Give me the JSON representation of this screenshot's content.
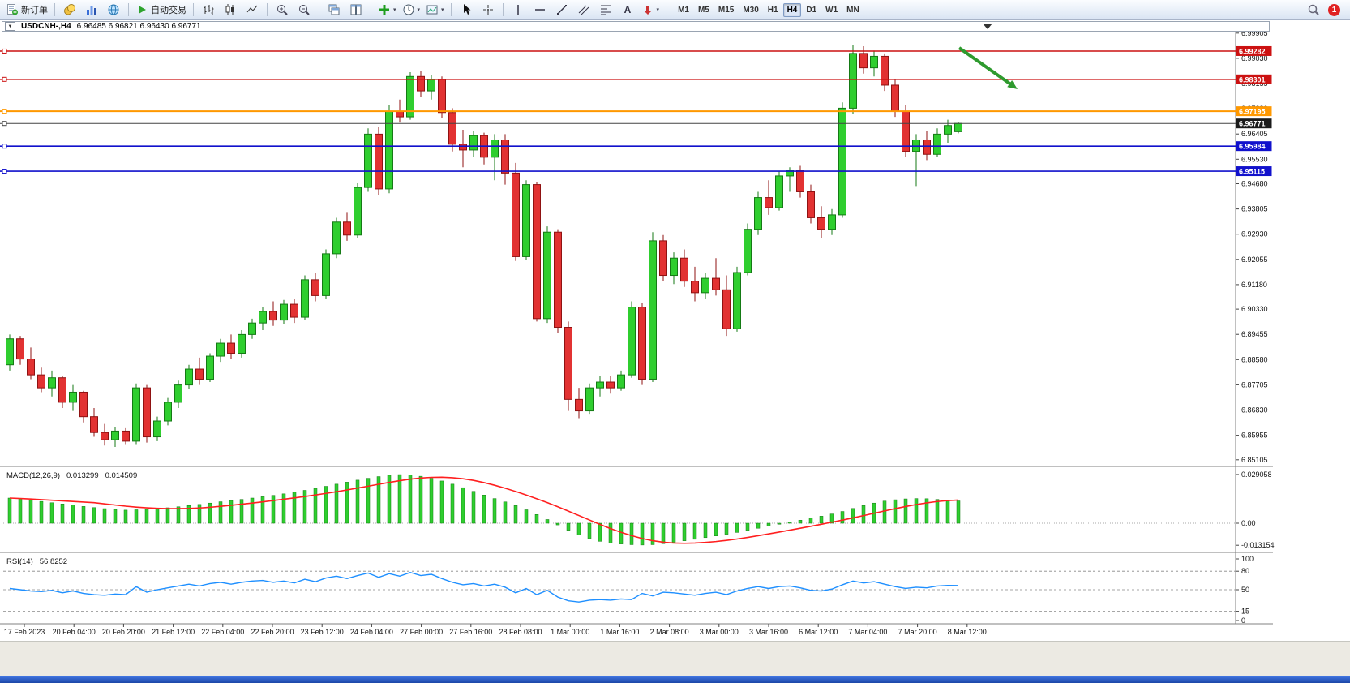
{
  "toolbar": {
    "new_order_label": "新订单",
    "auto_trading_label": "自动交易",
    "timeframes": [
      "M1",
      "M5",
      "M15",
      "M30",
      "H1",
      "H4",
      "D1",
      "W1",
      "MN"
    ],
    "active_timeframe": "H4",
    "notification_count": "1"
  },
  "chart_header": {
    "collapse_glyph": "▼",
    "symbol_title": "USDCNH-,H4",
    "quote_ohlc": "6.96485 6.96821 6.96430 6.96771"
  },
  "price_axis_ticks": [
    "6.99905",
    "6.99030",
    "6.98155",
    "6.97280",
    "6.96405",
    "6.95530",
    "6.94680",
    "6.93805",
    "6.92930",
    "6.92055",
    "6.91180",
    "6.90330",
    "6.89455",
    "6.88580",
    "6.87705",
    "6.86830",
    "6.85955",
    "6.85105"
  ],
  "hlines": [
    {
      "price": 6.99282,
      "label": "6.99282",
      "color": "#cc1111",
      "width": 1.5
    },
    {
      "price": 6.98301,
      "label": "6.98301",
      "color": "#cc1111",
      "width": 1.5
    },
    {
      "price": 6.97195,
      "label": "6.97195",
      "color": "#ff9800",
      "width": 2
    },
    {
      "price": 6.96771,
      "label": "6.96771",
      "color": "#444444",
      "width": 1,
      "current": true
    },
    {
      "price": 6.95984,
      "label": "6.95984",
      "color": "#1111cc",
      "width": 1.6
    },
    {
      "price": 6.95115,
      "label": "6.95115",
      "color": "#1111cc",
      "width": 1.6
    }
  ],
  "annotation_arrow": {
    "color": "#2e9a2e"
  },
  "chart_data": [
    {
      "type": "candlestick",
      "symbol": "USDCNH",
      "timeframe": "H4",
      "y_range": [
        6.85105,
        6.99905
      ],
      "up_color": "#2fce2f",
      "down_color": "#e23232",
      "time_labels": [
        "17 Feb 2023",
        "20 Feb 04:00",
        "20 Feb 20:00",
        "21 Feb 12:00",
        "22 Feb 04:00",
        "22 Feb 20:00",
        "23 Feb 12:00",
        "24 Feb 04:00",
        "27 Feb 00:00",
        "27 Feb 16:00",
        "28 Feb 08:00",
        "1 Mar 00:00",
        "1 Mar 16:00",
        "2 Mar 08:00",
        "3 Mar 00:00",
        "3 Mar 16:00",
        "6 Mar 12:00",
        "7 Mar 04:00",
        "7 Mar 20:00",
        "8 Mar 12:00"
      ],
      "candles": [
        [
          6.884,
          6.8945,
          6.882,
          6.893
        ],
        [
          6.893,
          6.894,
          6.884,
          6.886
        ],
        [
          6.886,
          6.89,
          6.879,
          6.8805
        ],
        [
          6.8805,
          6.883,
          6.8745,
          6.876
        ],
        [
          6.876,
          6.882,
          6.873,
          6.8795
        ],
        [
          6.8795,
          6.88,
          6.869,
          6.871
        ],
        [
          6.871,
          6.877,
          6.868,
          6.8745
        ],
        [
          6.8745,
          6.875,
          6.864,
          6.866
        ],
        [
          6.866,
          6.869,
          6.859,
          6.8605
        ],
        [
          6.8605,
          6.8635,
          6.856,
          6.858
        ],
        [
          6.858,
          6.8625,
          6.8555,
          6.861
        ],
        [
          6.861,
          6.862,
          6.8565,
          6.8575
        ],
        [
          6.8575,
          6.8775,
          6.8565,
          6.876
        ],
        [
          6.876,
          6.877,
          6.857,
          6.859
        ],
        [
          6.859,
          6.866,
          6.8575,
          6.8645
        ],
        [
          6.8645,
          6.8725,
          6.863,
          6.871
        ],
        [
          6.871,
          6.8785,
          6.869,
          6.877
        ],
        [
          6.877,
          6.884,
          6.8755,
          6.8825
        ],
        [
          6.8825,
          6.8865,
          6.877,
          6.879
        ],
        [
          6.879,
          6.888,
          6.878,
          6.887
        ],
        [
          6.887,
          6.893,
          6.885,
          6.8915
        ],
        [
          6.8915,
          6.8945,
          6.886,
          6.888
        ],
        [
          6.888,
          6.896,
          6.8865,
          6.8945
        ],
        [
          6.8945,
          6.9,
          6.893,
          6.8985
        ],
        [
          6.8985,
          6.904,
          6.896,
          6.9025
        ],
        [
          6.9025,
          6.906,
          6.8975,
          6.8995
        ],
        [
          6.8995,
          6.9065,
          6.898,
          6.905
        ],
        [
          6.905,
          6.907,
          6.8985,
          6.9005
        ],
        [
          6.9005,
          6.915,
          6.8995,
          6.9135
        ],
        [
          6.9135,
          6.916,
          6.906,
          6.908
        ],
        [
          6.908,
          6.924,
          6.907,
          6.9225
        ],
        [
          6.9225,
          6.935,
          6.921,
          6.9335
        ],
        [
          6.9335,
          6.937,
          6.927,
          6.929
        ],
        [
          6.929,
          6.947,
          6.928,
          6.9455
        ],
        [
          6.9455,
          6.966,
          6.944,
          6.964
        ],
        [
          6.964,
          6.9665,
          6.943,
          6.945
        ],
        [
          6.945,
          6.974,
          6.9435,
          6.972
        ],
        [
          6.972,
          6.976,
          6.968,
          6.97
        ],
        [
          6.97,
          6.9855,
          6.969,
          6.984
        ],
        [
          6.984,
          6.986,
          6.977,
          6.979
        ],
        [
          6.979,
          6.9845,
          6.976,
          6.983
        ],
        [
          6.983,
          6.984,
          6.9695,
          6.9715
        ],
        [
          6.9715,
          6.973,
          6.958,
          6.9605
        ],
        [
          6.9605,
          6.9655,
          6.9525,
          6.9585
        ],
        [
          6.9585,
          6.965,
          6.956,
          6.9635
        ],
        [
          6.9635,
          6.9645,
          6.9535,
          6.956
        ],
        [
          6.956,
          6.964,
          6.948,
          6.962
        ],
        [
          6.962,
          6.964,
          6.9465,
          6.9505
        ],
        [
          6.9505,
          6.954,
          6.92,
          6.9215
        ],
        [
          6.9215,
          6.948,
          6.9205,
          6.9465
        ],
        [
          6.9465,
          6.9475,
          6.899,
          6.9
        ],
        [
          6.9,
          6.932,
          6.8985,
          6.93
        ],
        [
          6.93,
          6.931,
          6.895,
          6.897
        ],
        [
          6.897,
          6.899,
          6.868,
          6.872
        ],
        [
          6.872,
          6.876,
          6.8655,
          6.868
        ],
        [
          6.868,
          6.8775,
          6.867,
          6.876
        ],
        [
          6.876,
          6.88,
          6.873,
          6.878
        ],
        [
          6.878,
          6.88,
          6.874,
          6.876
        ],
        [
          6.876,
          6.882,
          6.875,
          6.8805
        ],
        [
          6.8805,
          6.906,
          6.8795,
          6.904
        ],
        [
          6.904,
          6.9055,
          6.877,
          6.879
        ],
        [
          6.879,
          6.93,
          6.878,
          6.927
        ],
        [
          6.927,
          6.929,
          6.913,
          6.915
        ],
        [
          6.915,
          6.923,
          6.912,
          6.921
        ],
        [
          6.921,
          6.924,
          6.911,
          6.913
        ],
        [
          6.913,
          6.918,
          6.906,
          6.909
        ],
        [
          6.909,
          6.916,
          6.907,
          6.914
        ],
        [
          6.914,
          6.921,
          6.908,
          6.91
        ],
        [
          6.91,
          6.915,
          6.894,
          6.8965
        ],
        [
          6.8965,
          6.918,
          6.8955,
          6.916
        ],
        [
          6.916,
          6.933,
          6.915,
          6.931
        ],
        [
          6.931,
          6.944,
          6.929,
          6.942
        ],
        [
          6.942,
          6.948,
          6.936,
          6.9385
        ],
        [
          6.9385,
          6.951,
          6.9375,
          6.9495
        ],
        [
          6.9495,
          6.9525,
          6.944,
          6.9515
        ],
        [
          6.9515,
          6.953,
          6.942,
          6.944
        ],
        [
          6.944,
          6.9465,
          6.933,
          6.935
        ],
        [
          6.935,
          6.939,
          6.928,
          6.931
        ],
        [
          6.931,
          6.938,
          6.929,
          6.936
        ],
        [
          6.936,
          6.975,
          6.935,
          6.973
        ],
        [
          6.973,
          6.995,
          6.971,
          6.992
        ],
        [
          6.992,
          6.9945,
          6.985,
          6.987
        ],
        [
          6.987,
          6.993,
          6.984,
          6.991
        ],
        [
          6.991,
          6.992,
          6.979,
          6.981
        ],
        [
          6.981,
          6.983,
          6.97,
          6.972
        ],
        [
          6.972,
          6.974,
          6.956,
          6.958
        ],
        [
          6.958,
          6.964,
          6.946,
          6.962
        ],
        [
          6.962,
          6.965,
          6.955,
          6.957
        ],
        [
          6.957,
          6.966,
          6.956,
          6.964
        ],
        [
          6.964,
          6.969,
          6.961,
          6.967
        ],
        [
          6.96485,
          6.96821,
          6.9643,
          6.96771
        ]
      ]
    },
    {
      "type": "bar",
      "title": "MACD(12,26,9)",
      "main_value": "0.013299",
      "signal_value": "0.014509",
      "axis_labels": [
        "0.029058",
        "0.00",
        "-0.013154"
      ],
      "range": [
        -0.0145,
        0.03
      ],
      "signal_period": 9,
      "bar_color": "#2fce2f",
      "signal_color": "#ff1f1f",
      "histogram": [
        0.015,
        0.0145,
        0.0138,
        0.013,
        0.0122,
        0.0115,
        0.0108,
        0.01,
        0.0093,
        0.0087,
        0.0082,
        0.0078,
        0.008,
        0.0083,
        0.0087,
        0.0092,
        0.0098,
        0.0105,
        0.0112,
        0.012,
        0.0128,
        0.0135,
        0.0142,
        0.015,
        0.0158,
        0.0166,
        0.0175,
        0.0185,
        0.0196,
        0.0208,
        0.022,
        0.0233,
        0.0245,
        0.0257,
        0.0268,
        0.0278,
        0.0286,
        0.029,
        0.0288,
        0.028,
        0.0268,
        0.0252,
        0.0233,
        0.0212,
        0.019,
        0.0168,
        0.0147,
        0.0127,
        0.0105,
        0.008,
        0.0052,
        0.0022,
        -0.001,
        -0.0042,
        -0.007,
        -0.0092,
        -0.0108,
        -0.0118,
        -0.0124,
        -0.0128,
        -0.013,
        -0.0128,
        -0.0122,
        -0.0114,
        -0.0105,
        -0.0096,
        -0.0086,
        -0.0076,
        -0.0066,
        -0.0055,
        -0.0043,
        -0.003,
        -0.0018,
        -0.0006,
        0.0006,
        0.0018,
        0.003,
        0.0042,
        0.0055,
        0.007,
        0.0088,
        0.0105,
        0.012,
        0.0132,
        0.014,
        0.0145,
        0.0147,
        0.0146,
        0.0142,
        0.0137,
        0.0133
      ]
    },
    {
      "type": "line",
      "title": "RSI(14)",
      "value": "56.8252",
      "levels": [
        "100",
        "80",
        "50",
        "15",
        "0"
      ],
      "level_lines": [
        80,
        50,
        15
      ],
      "range": [
        0,
        100
      ],
      "line_color": "#1e8fff",
      "values": [
        52,
        50,
        48,
        47,
        49,
        45,
        48,
        44,
        42,
        41,
        43,
        42,
        55,
        46,
        50,
        53,
        56,
        59,
        56,
        60,
        62,
        59,
        62,
        64,
        65,
        62,
        64,
        61,
        67,
        63,
        69,
        72,
        68,
        73,
        77,
        70,
        76,
        72,
        78,
        73,
        75,
        68,
        62,
        58,
        60,
        56,
        59,
        54,
        45,
        52,
        42,
        49,
        38,
        32,
        30,
        33,
        34,
        33,
        35,
        34,
        44,
        40,
        46,
        45,
        43,
        41,
        44,
        46,
        42,
        48,
        52,
        55,
        52,
        55,
        56,
        53,
        49,
        48,
        51,
        58,
        64,
        61,
        63,
        59,
        55,
        52,
        54,
        53,
        56,
        57,
        56.8
      ]
    }
  ]
}
